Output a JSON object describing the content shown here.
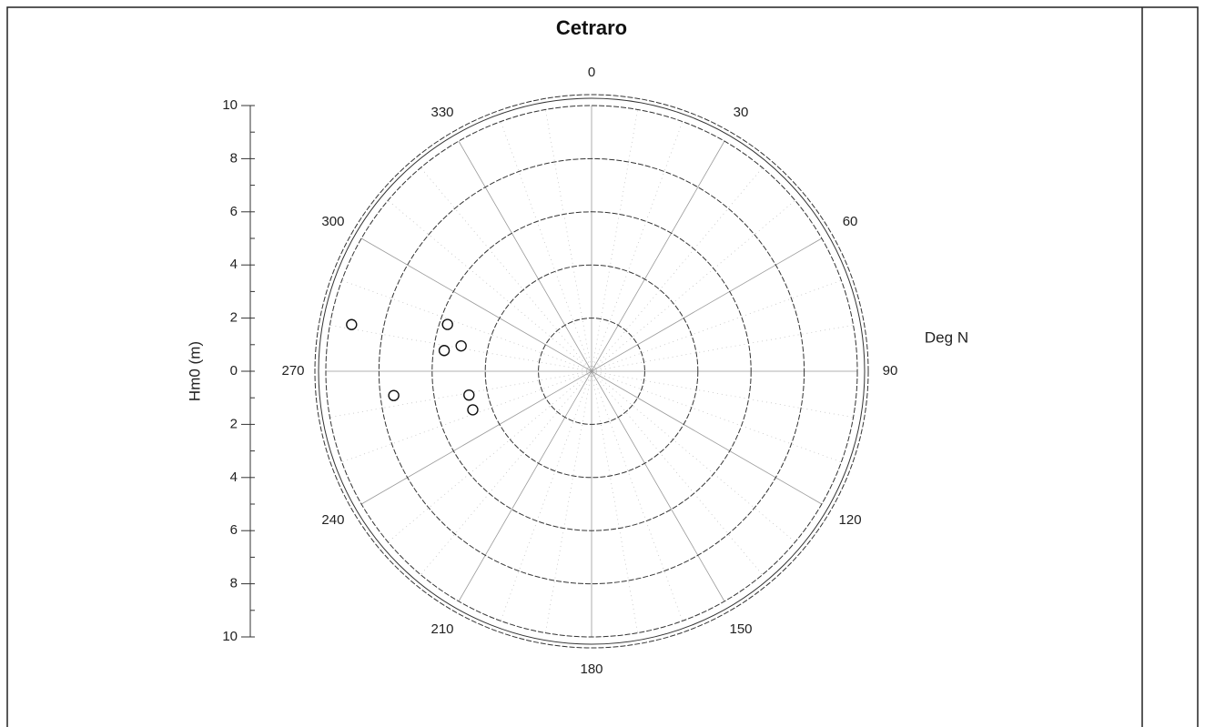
{
  "chart_data": {
    "type": "polar-scatter",
    "title": "Cetraro",
    "theta_label": "Deg N",
    "r_label": "Hm0 (m)",
    "rlim": [
      0,
      10
    ],
    "rticks": [
      2,
      4,
      6,
      8,
      10
    ],
    "thetaticks": [
      0,
      30,
      60,
      90,
      120,
      150,
      180,
      210,
      240,
      270,
      300,
      330
    ],
    "ylim": [
      -10,
      10
    ],
    "yticks": [
      {
        "value": -10,
        "label": "10"
      },
      {
        "value": -8,
        "label": "8"
      },
      {
        "value": -6,
        "label": "6"
      },
      {
        "value": -4,
        "label": "4"
      },
      {
        "value": -2,
        "label": "2"
      },
      0,
      2,
      4,
      6,
      8,
      10
    ],
    "series": [
      {
        "color": "#111111",
        "theta": [
          281,
          288,
          281,
          278,
          263,
          259,
          252
        ],
        "r": [
          9.2,
          5.7,
          5.0,
          5.6,
          7.5,
          4.7,
          4.7
        ]
      }
    ]
  }
}
